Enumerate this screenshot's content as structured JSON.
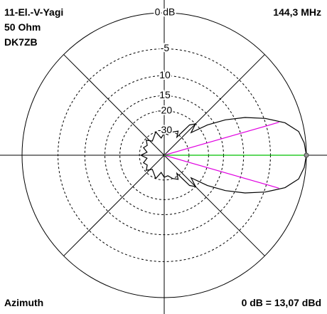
{
  "chart_data": {
    "type": "polar",
    "title": "11-El.-V-Yagi",
    "info_lines": [
      "50 Ohm",
      "DK7ZB"
    ],
    "frequency": "144,3 MHz",
    "plot_label": "Azimuth",
    "reference": "0 dB = 13,07 dBd",
    "radial_scale": "arrl-log",
    "rmax": 0,
    "rticks": [
      {
        "value": 0,
        "label": "0 dB"
      },
      -5,
      {
        "value": -10,
        "label": "10"
      },
      {
        "value": -15,
        "label": "15"
      },
      -20,
      -30
    ],
    "angles": [
      0,
      5,
      10,
      15,
      20,
      25,
      30,
      35,
      40,
      45,
      50,
      55,
      60,
      70,
      80,
      90,
      100,
      110,
      120,
      130,
      140,
      150,
      160,
      170,
      180,
      190,
      200,
      210,
      220,
      230,
      240,
      250,
      260,
      270,
      280,
      290,
      300,
      305,
      310,
      315,
      320,
      325,
      330,
      335,
      340,
      345,
      350,
      355
    ],
    "gain": [
      0,
      -0.2,
      -0.7,
      -2.2,
      -4.8,
      -8,
      -12,
      -17,
      -24,
      -20,
      -22,
      -32,
      -28,
      -30,
      -33,
      -32,
      -36,
      -30,
      -33,
      -35,
      -31,
      -34,
      -32,
      -36,
      -31,
      -36,
      -32,
      -34,
      -31,
      -35,
      -33,
      -30,
      -36,
      -32,
      -33,
      -30,
      -28,
      -32,
      -22,
      -20,
      -24,
      -17,
      -12,
      -8,
      -4.8,
      -2.2,
      -0.7,
      -0.2
    ],
    "color": "#000000",
    "main_direction": 0,
    "main_direction_color": "#00c000",
    "half_power_angles": [
      16,
      -16
    ],
    "half_power_color": "#e000e0"
  }
}
